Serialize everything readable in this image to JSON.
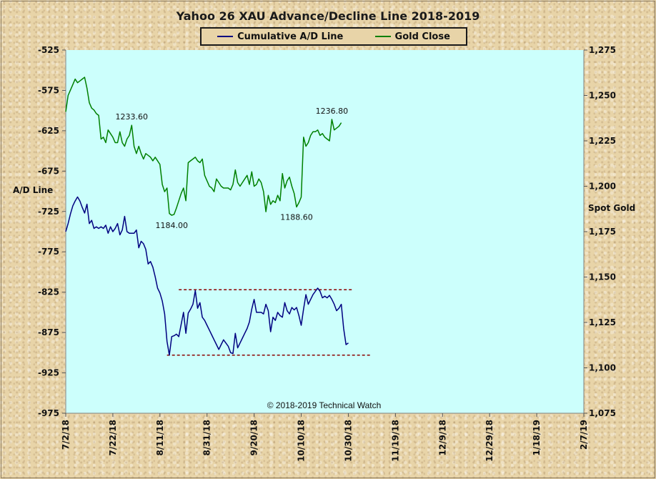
{
  "chart_data": {
    "type": "line",
    "title": "Yahoo 26 XAU Advance/Decline  Line 2018-2019",
    "ylabel_left": "A/D Line",
    "ylabel_right": "Spot Gold",
    "copyright": "© 2018-2019  Technical Watch",
    "x_dates": [
      "2018-07-02",
      "2018-07-22",
      "2018-08-11",
      "2018-08-31",
      "2018-09-20",
      "2018-10-10",
      "2018-10-30",
      "2018-11-19",
      "2018-12-09",
      "2018-12-29",
      "2019-01-18",
      "2019-02-07"
    ],
    "x_tick_labels": [
      "7/2/18",
      "7/22/18",
      "8/11/18",
      "8/31/18",
      "9/20/18",
      "10/10/18",
      "10/30/18",
      "11/19/18",
      "12/9/18",
      "12/29/18",
      "1/18/19",
      "2/7/19"
    ],
    "xlim": [
      "2018-07-02",
      "2019-02-07"
    ],
    "y_left": {
      "lim": [
        -975,
        -525
      ],
      "ticks": [
        -525,
        -575,
        -625,
        -675,
        -725,
        -775,
        -825,
        -875,
        -925,
        -975
      ],
      "tick_labels": [
        "-525",
        "-575",
        "-625",
        "-675",
        "-725",
        "-775",
        "-825",
        "-875",
        "-925",
        "-975"
      ]
    },
    "y_right": {
      "lim": [
        1075,
        1275
      ],
      "ticks": [
        1275,
        1250,
        1225,
        1200,
        1175,
        1150,
        1125,
        1100,
        1075
      ],
      "tick_labels": [
        "1,275",
        "1,250",
        "1,225",
        "1,200",
        "1,175",
        "1,150",
        "1,125",
        "1,100",
        "1,075"
      ]
    },
    "grid": false,
    "legend_position": "top-center",
    "plot_background": "#ccfffc",
    "series": [
      {
        "name": "Cumulative A/D Line",
        "axis": "left",
        "color": "#000080",
        "points": [
          [
            "2018-07-02",
            -750
          ],
          [
            "2018-07-03",
            -740
          ],
          [
            "2018-07-04",
            -728
          ],
          [
            "2018-07-05",
            -718
          ],
          [
            "2018-07-06",
            -712
          ],
          [
            "2018-07-07",
            -707
          ],
          [
            "2018-07-08",
            -712
          ],
          [
            "2018-07-09",
            -720
          ],
          [
            "2018-07-10",
            -727
          ],
          [
            "2018-07-11",
            -716
          ],
          [
            "2018-07-12",
            -740
          ],
          [
            "2018-07-13",
            -736
          ],
          [
            "2018-07-14",
            -746
          ],
          [
            "2018-07-15",
            -744
          ],
          [
            "2018-07-16",
            -746
          ],
          [
            "2018-07-17",
            -744
          ],
          [
            "2018-07-18",
            -746
          ],
          [
            "2018-07-19",
            -742
          ],
          [
            "2018-07-20",
            -752
          ],
          [
            "2018-07-21",
            -744
          ],
          [
            "2018-07-22",
            -750
          ],
          [
            "2018-07-23",
            -746
          ],
          [
            "2018-07-24",
            -740
          ],
          [
            "2018-07-25",
            -754
          ],
          [
            "2018-07-26",
            -748
          ],
          [
            "2018-07-27",
            -731
          ],
          [
            "2018-07-28",
            -750
          ],
          [
            "2018-07-29",
            -752
          ],
          [
            "2018-07-30",
            -752
          ],
          [
            "2018-07-31",
            -752
          ],
          [
            "2018-08-01",
            -748
          ],
          [
            "2018-08-02",
            -770
          ],
          [
            "2018-08-03",
            -762
          ],
          [
            "2018-08-04",
            -765
          ],
          [
            "2018-08-05",
            -772
          ],
          [
            "2018-08-06",
            -790
          ],
          [
            "2018-08-07",
            -787
          ],
          [
            "2018-08-08",
            -794
          ],
          [
            "2018-08-09",
            -806
          ],
          [
            "2018-08-10",
            -820
          ],
          [
            "2018-08-11",
            -826
          ],
          [
            "2018-08-12",
            -836
          ],
          [
            "2018-08-13",
            -852
          ],
          [
            "2018-08-14",
            -886
          ],
          [
            "2018-08-15",
            -903
          ],
          [
            "2018-08-16",
            -880
          ],
          [
            "2018-08-17",
            -879
          ],
          [
            "2018-08-18",
            -877
          ],
          [
            "2018-08-19",
            -880
          ],
          [
            "2018-08-20",
            -865
          ],
          [
            "2018-08-21",
            -850
          ],
          [
            "2018-08-22",
            -876
          ],
          [
            "2018-08-23",
            -851
          ],
          [
            "2018-08-24",
            -846
          ],
          [
            "2018-08-25",
            -840
          ],
          [
            "2018-08-26",
            -823
          ],
          [
            "2018-08-27",
            -845
          ],
          [
            "2018-08-28",
            -838
          ],
          [
            "2018-08-29",
            -856
          ],
          [
            "2018-08-30",
            -860
          ],
          [
            "2018-08-31",
            -866
          ],
          [
            "2018-09-01",
            -872
          ],
          [
            "2018-09-02",
            -878
          ],
          [
            "2018-09-03",
            -884
          ],
          [
            "2018-09-04",
            -890
          ],
          [
            "2018-09-05",
            -896
          ],
          [
            "2018-09-06",
            -890
          ],
          [
            "2018-09-07",
            -884
          ],
          [
            "2018-09-08",
            -888
          ],
          [
            "2018-09-09",
            -892
          ],
          [
            "2018-09-10",
            -900
          ],
          [
            "2018-09-11",
            -901
          ],
          [
            "2018-09-12",
            -876
          ],
          [
            "2018-09-13",
            -894
          ],
          [
            "2018-09-14",
            -888
          ],
          [
            "2018-09-15",
            -882
          ],
          [
            "2018-09-16",
            -876
          ],
          [
            "2018-09-17",
            -870
          ],
          [
            "2018-09-18",
            -862
          ],
          [
            "2018-09-19",
            -846
          ],
          [
            "2018-09-20",
            -834
          ],
          [
            "2018-09-21",
            -850
          ],
          [
            "2018-09-22",
            -850
          ],
          [
            "2018-09-23",
            -850
          ],
          [
            "2018-09-24",
            -852
          ],
          [
            "2018-09-25",
            -840
          ],
          [
            "2018-09-26",
            -848
          ],
          [
            "2018-09-27",
            -874
          ],
          [
            "2018-09-28",
            -856
          ],
          [
            "2018-09-29",
            -860
          ],
          [
            "2018-09-30",
            -850
          ],
          [
            "2018-10-01",
            -854
          ],
          [
            "2018-10-02",
            -856
          ],
          [
            "2018-10-03",
            -838
          ],
          [
            "2018-10-04",
            -848
          ],
          [
            "2018-10-05",
            -852
          ],
          [
            "2018-10-06",
            -844
          ],
          [
            "2018-10-07",
            -847
          ],
          [
            "2018-10-08",
            -844
          ],
          [
            "2018-10-09",
            -854
          ],
          [
            "2018-10-10",
            -866
          ],
          [
            "2018-10-11",
            -846
          ],
          [
            "2018-10-12",
            -828
          ],
          [
            "2018-10-13",
            -840
          ],
          [
            "2018-10-14",
            -834
          ],
          [
            "2018-10-15",
            -828
          ],
          [
            "2018-10-16",
            -824
          ],
          [
            "2018-10-17",
            -820
          ],
          [
            "2018-10-18",
            -824
          ],
          [
            "2018-10-19",
            -832
          ],
          [
            "2018-10-20",
            -830
          ],
          [
            "2018-10-21",
            -832
          ],
          [
            "2018-10-22",
            -829
          ],
          [
            "2018-10-23",
            -834
          ],
          [
            "2018-10-24",
            -840
          ],
          [
            "2018-10-25",
            -848
          ],
          [
            "2018-10-26",
            -845
          ],
          [
            "2018-10-27",
            -840
          ],
          [
            "2018-10-28",
            -870
          ],
          [
            "2018-10-29",
            -890
          ],
          [
            "2018-10-30",
            -888
          ]
        ]
      },
      {
        "name": "Gold Close",
        "axis": "right",
        "color": "#008000",
        "points": [
          [
            "2018-07-02",
            1241
          ],
          [
            "2018-07-03",
            1250
          ],
          [
            "2018-07-04",
            1253
          ],
          [
            "2018-07-05",
            1256
          ],
          [
            "2018-07-06",
            1259
          ],
          [
            "2018-07-07",
            1257
          ],
          [
            "2018-07-08",
            1258
          ],
          [
            "2018-07-09",
            1259
          ],
          [
            "2018-07-10",
            1260
          ],
          [
            "2018-07-11",
            1254
          ],
          [
            "2018-07-12",
            1246
          ],
          [
            "2018-07-13",
            1243
          ],
          [
            "2018-07-14",
            1242
          ],
          [
            "2018-07-15",
            1240
          ],
          [
            "2018-07-16",
            1239
          ],
          [
            "2018-07-17",
            1226
          ],
          [
            "2018-07-18",
            1227
          ],
          [
            "2018-07-19",
            1224
          ],
          [
            "2018-07-20",
            1231
          ],
          [
            "2018-07-21",
            1229
          ],
          [
            "2018-07-22",
            1227
          ],
          [
            "2018-07-23",
            1224
          ],
          [
            "2018-07-24",
            1224
          ],
          [
            "2018-07-25",
            1230
          ],
          [
            "2018-07-26",
            1224
          ],
          [
            "2018-07-27",
            1222
          ],
          [
            "2018-07-28",
            1226
          ],
          [
            "2018-07-29",
            1228
          ],
          [
            "2018-07-30",
            1233.6
          ],
          [
            "2018-07-31",
            1222
          ],
          [
            "2018-08-01",
            1218
          ],
          [
            "2018-08-02",
            1222
          ],
          [
            "2018-08-03",
            1218
          ],
          [
            "2018-08-04",
            1215
          ],
          [
            "2018-08-05",
            1218
          ],
          [
            "2018-08-06",
            1217
          ],
          [
            "2018-08-07",
            1216
          ],
          [
            "2018-08-08",
            1214
          ],
          [
            "2018-08-09",
            1216
          ],
          [
            "2018-08-10",
            1214
          ],
          [
            "2018-08-11",
            1212
          ],
          [
            "2018-08-12",
            1201
          ],
          [
            "2018-08-13",
            1197
          ],
          [
            "2018-08-14",
            1199
          ],
          [
            "2018-08-15",
            1185
          ],
          [
            "2018-08-16",
            1184
          ],
          [
            "2018-08-17",
            1184.5
          ],
          [
            "2018-08-18",
            1188
          ],
          [
            "2018-08-19",
            1192
          ],
          [
            "2018-08-20",
            1196
          ],
          [
            "2018-08-21",
            1199
          ],
          [
            "2018-08-22",
            1192
          ],
          [
            "2018-08-23",
            1213
          ],
          [
            "2018-08-24",
            1214
          ],
          [
            "2018-08-25",
            1215
          ],
          [
            "2018-08-26",
            1216
          ],
          [
            "2018-08-27",
            1214
          ],
          [
            "2018-08-28",
            1213
          ],
          [
            "2018-08-29",
            1215
          ],
          [
            "2018-08-30",
            1206
          ],
          [
            "2018-08-31",
            1203
          ],
          [
            "2018-09-01",
            1200
          ],
          [
            "2018-09-02",
            1199
          ],
          [
            "2018-09-03",
            1197
          ],
          [
            "2018-09-04",
            1204
          ],
          [
            "2018-09-05",
            1202
          ],
          [
            "2018-09-06",
            1200
          ],
          [
            "2018-09-07",
            1199
          ],
          [
            "2018-09-08",
            1199
          ],
          [
            "2018-09-09",
            1199
          ],
          [
            "2018-09-10",
            1198
          ],
          [
            "2018-09-11",
            1201
          ],
          [
            "2018-09-12",
            1209
          ],
          [
            "2018-09-13",
            1202
          ],
          [
            "2018-09-14",
            1200
          ],
          [
            "2018-09-15",
            1202
          ],
          [
            "2018-09-16",
            1204
          ],
          [
            "2018-09-17",
            1206
          ],
          [
            "2018-09-18",
            1201
          ],
          [
            "2018-09-19",
            1208
          ],
          [
            "2018-09-20",
            1200
          ],
          [
            "2018-09-21",
            1201
          ],
          [
            "2018-09-22",
            1204
          ],
          [
            "2018-09-23",
            1202
          ],
          [
            "2018-09-24",
            1197
          ],
          [
            "2018-09-25",
            1186
          ],
          [
            "2018-09-26",
            1195
          ],
          [
            "2018-09-27",
            1190
          ],
          [
            "2018-09-28",
            1192
          ],
          [
            "2018-09-29",
            1191
          ],
          [
            "2018-09-30",
            1195
          ],
          [
            "2018-10-01",
            1192
          ],
          [
            "2018-10-02",
            1207
          ],
          [
            "2018-10-03",
            1199
          ],
          [
            "2018-10-04",
            1203
          ],
          [
            "2018-10-05",
            1205
          ],
          [
            "2018-10-06",
            1200
          ],
          [
            "2018-10-07",
            1196
          ],
          [
            "2018-10-08",
            1188.6
          ],
          [
            "2018-10-09",
            1191
          ],
          [
            "2018-10-10",
            1194
          ],
          [
            "2018-10-11",
            1227
          ],
          [
            "2018-10-12",
            1222
          ],
          [
            "2018-10-13",
            1224
          ],
          [
            "2018-10-14",
            1228
          ],
          [
            "2018-10-15",
            1230
          ],
          [
            "2018-10-16",
            1230
          ],
          [
            "2018-10-17",
            1231
          ],
          [
            "2018-10-18",
            1228
          ],
          [
            "2018-10-19",
            1229
          ],
          [
            "2018-10-20",
            1227
          ],
          [
            "2018-10-21",
            1226
          ],
          [
            "2018-10-22",
            1225
          ],
          [
            "2018-10-23",
            1236.8
          ],
          [
            "2018-10-24",
            1231
          ],
          [
            "2018-10-25",
            1232
          ],
          [
            "2018-10-26",
            1233
          ],
          [
            "2018-10-27",
            1235
          ]
        ]
      }
    ],
    "annotations": [
      {
        "text": "1233.60",
        "x": "2018-07-30",
        "y": 1233.6,
        "axis": "right",
        "position": "above"
      },
      {
        "text": "1184.00",
        "x": "2018-08-16",
        "y": 1184.0,
        "axis": "right",
        "position": "below"
      },
      {
        "text": "1188.60",
        "x": "2018-10-08",
        "y": 1188.6,
        "axis": "right",
        "position": "below"
      },
      {
        "text": "1236.80",
        "x": "2018-10-23",
        "y": 1236.8,
        "axis": "right",
        "position": "above"
      }
    ],
    "reference_lines": [
      {
        "axis": "left",
        "y": -822,
        "x_start": "2018-08-19",
        "x_end": "2018-11-01",
        "color": "#8b0000",
        "style": "dashed"
      },
      {
        "axis": "left",
        "y": -903,
        "x_start": "2018-08-14",
        "x_end": "2018-11-09",
        "color": "#8b0000",
        "style": "dashed"
      }
    ]
  }
}
